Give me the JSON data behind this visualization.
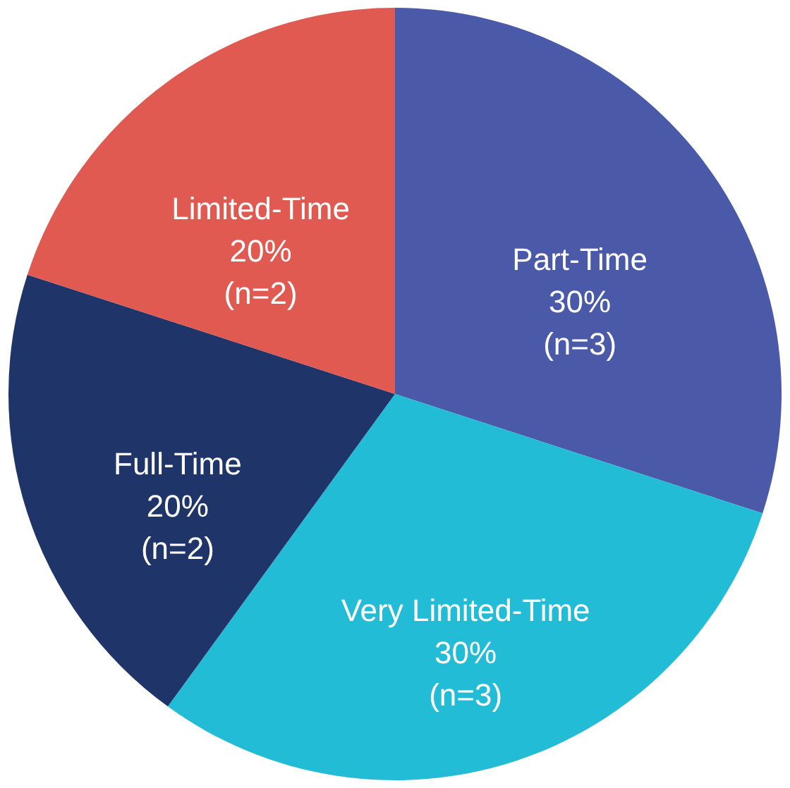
{
  "chart_data": {
    "type": "pie",
    "categories": [
      "Part-Time",
      "Very Limited-Time",
      "Full-Time",
      "Limited-Time"
    ],
    "values": [
      30,
      30,
      20,
      20
    ],
    "colors": [
      "#4a5aa8",
      "#22bcd6",
      "#1f3468",
      "#e05a52"
    ],
    "value_labels": [
      "30%\n(n=3)",
      "30%\n(n=3)",
      "20%\n(n=2)",
      "20%\n(n=2)"
    ]
  }
}
